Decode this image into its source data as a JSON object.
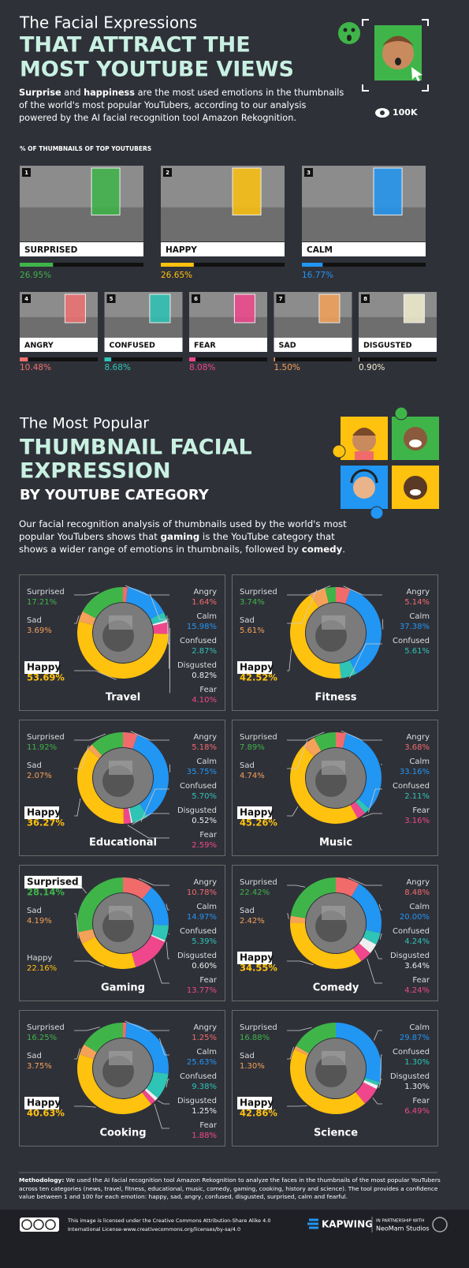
{
  "header": {
    "kicker": "The Facial Expressions",
    "title_lines": [
      "THAT ATTRACT THE",
      "MOST YOUTUBE VIEWS"
    ],
    "badge": "100K",
    "intro": [
      {
        "text": "Surprise",
        "bold": true
      },
      {
        "text": " and ",
        "bold": false
      },
      {
        "text": "happiness",
        "bold": true
      },
      {
        "text": " are the most used emotions in the thumbnails of the world's most popular YouTubers, according to our analysis powered by the AI facial recognition tool Amazon Rekognition.",
        "bold": false
      }
    ]
  },
  "section2": {
    "kicker": "The Most Popular",
    "title_lines": [
      "THUMBNAIL FACIAL",
      "EXPRESSION"
    ],
    "subtitle": "BY YOUTUBE CATEGORY",
    "intro": [
      {
        "text": "Our facial recognition analysis of thumbnails used by the world's most popular YouTubers shows that ",
        "bold": false
      },
      {
        "text": "gaming",
        "bold": true
      },
      {
        "text": " is the YouTube category that shows a wider range of emotions in thumbnails, followed by ",
        "bold": false
      },
      {
        "text": "comedy",
        "bold": true
      },
      {
        "text": ".",
        "bold": false
      }
    ]
  },
  "chart_data": [
    {
      "type": "bar",
      "orientation": "horizontal",
      "title": "% OF THUMBNAILS OF TOP YOUTUBERS",
      "ranks": [
        "1",
        "2",
        "3",
        "4",
        "5",
        "6",
        "7",
        "8"
      ],
      "categories": [
        "SURPRISED",
        "HAPPY",
        "CALM",
        "ANGRY",
        "CONFUSED",
        "FEAR",
        "SAD",
        "DISGUSTED"
      ],
      "values": [
        26.95,
        26.65,
        16.77,
        10.48,
        8.68,
        8.08,
        1.5,
        0.9
      ],
      "value_labels": [
        "26.95%",
        "26.65%",
        "16.77%",
        "10.48%",
        "8.68%",
        "8.08%",
        "1.50%",
        "0.90%"
      ],
      "colors": [
        "#3fb549",
        "#ffc20e",
        "#2196f3",
        "#f07070",
        "#2ec4b6",
        "#f0478c",
        "#f4a259",
        "#f3eed0"
      ],
      "xlim": [
        0,
        100
      ]
    },
    {
      "type": "pie",
      "title": "Travel",
      "categories": [
        "Angry",
        "Calm",
        "Confused",
        "Disgusted",
        "Fear",
        "Happy",
        "Sad",
        "Surprised"
      ],
      "values": [
        1.64,
        15.98,
        2.87,
        0.82,
        4.1,
        53.69,
        3.69,
        17.21
      ],
      "value_labels": [
        "1.64%",
        "15.98%",
        "2.87%",
        "0.82%",
        "4.10%",
        "53.69%",
        "3.69%",
        "17.21%"
      ],
      "colors": [
        "#f26b6b",
        "#2196f3",
        "#2ec4b6",
        "#eeeeee",
        "#f0478c",
        "#ffc20e",
        "#f4a259",
        "#3fb549"
      ]
    },
    {
      "type": "pie",
      "title": "Fitness",
      "categories": [
        "Angry",
        "Calm",
        "Confused",
        "Happy",
        "Sad",
        "Surprised"
      ],
      "values": [
        5.14,
        37.38,
        5.61,
        42.52,
        5.61,
        3.74
      ],
      "value_labels": [
        "5.14%",
        "37.38%",
        "5.61%",
        "42.52%",
        "5.61%",
        "3.74%"
      ],
      "colors": [
        "#f26b6b",
        "#2196f3",
        "#2ec4b6",
        "#ffc20e",
        "#f4a259",
        "#3fb549"
      ]
    },
    {
      "type": "pie",
      "title": "Educational",
      "categories": [
        "Angry",
        "Calm",
        "Confused",
        "Disgusted",
        "Fear",
        "Happy",
        "Sad",
        "Surprised"
      ],
      "values": [
        5.18,
        35.75,
        5.7,
        0.52,
        2.59,
        36.27,
        2.07,
        11.92
      ],
      "value_labels": [
        "5.18%",
        "35.75%",
        "5.70%",
        "0.52%",
        "2.59%",
        "36.27%",
        "2.07%",
        "11.92%"
      ],
      "colors": [
        "#f26b6b",
        "#2196f3",
        "#2ec4b6",
        "#eeeeee",
        "#f0478c",
        "#ffc20e",
        "#f4a259",
        "#3fb549"
      ]
    },
    {
      "type": "pie",
      "title": "Music",
      "categories": [
        "Angry",
        "Calm",
        "Confused",
        "Fear",
        "Happy",
        "Sad",
        "Surprised"
      ],
      "values": [
        3.68,
        33.16,
        2.11,
        3.16,
        45.26,
        4.74,
        7.89
      ],
      "value_labels": [
        "3.68%",
        "33.16%",
        "2.11%",
        "3.16%",
        "45.26%",
        "4.74%",
        "7.89%"
      ],
      "colors": [
        "#f26b6b",
        "#2196f3",
        "#2ec4b6",
        "#f0478c",
        "#ffc20e",
        "#f4a259",
        "#3fb549"
      ]
    },
    {
      "type": "pie",
      "title": "Gaming",
      "categories": [
        "Angry",
        "Calm",
        "Confused",
        "Disgusted",
        "Fear",
        "Happy",
        "Sad",
        "Surprised"
      ],
      "values": [
        10.78,
        14.97,
        5.39,
        0.6,
        13.77,
        22.16,
        4.19,
        28.14
      ],
      "value_labels": [
        "10.78%",
        "14.97%",
        "5.39%",
        "0.60%",
        "13.77%",
        "22.16%",
        "4.19%",
        "28.14%"
      ],
      "colors": [
        "#f26b6b",
        "#2196f3",
        "#2ec4b6",
        "#eeeeee",
        "#f0478c",
        "#ffc20e",
        "#f4a259",
        "#3fb549"
      ]
    },
    {
      "type": "pie",
      "title": "Comedy",
      "categories": [
        "Angry",
        "Calm",
        "Confused",
        "Disgusted",
        "Fear",
        "Happy",
        "Sad",
        "Surprised"
      ],
      "values": [
        8.48,
        20.0,
        4.24,
        3.64,
        4.24,
        34.55,
        2.42,
        22.42
      ],
      "value_labels": [
        "8.48%",
        "20.00%",
        "4.24%",
        "3.64%",
        "4.24%",
        "34.55%",
        "2.42%",
        "22.42%"
      ],
      "colors": [
        "#f26b6b",
        "#2196f3",
        "#2ec4b6",
        "#eeeeee",
        "#f0478c",
        "#ffc20e",
        "#f4a259",
        "#3fb549"
      ]
    },
    {
      "type": "pie",
      "title": "Cooking",
      "categories": [
        "Angry",
        "Calm",
        "Confused",
        "Disgusted",
        "Fear",
        "Happy",
        "Sad",
        "Surprised"
      ],
      "values": [
        1.25,
        25.63,
        9.38,
        1.25,
        1.88,
        40.63,
        3.75,
        16.25
      ],
      "value_labels": [
        "1.25%",
        "25.63%",
        "9.38%",
        "1.25%",
        "1.88%",
        "40.63%",
        "3.75%",
        "16.25%"
      ],
      "colors": [
        "#f26b6b",
        "#2196f3",
        "#2ec4b6",
        "#eeeeee",
        "#f0478c",
        "#ffc20e",
        "#f4a259",
        "#3fb549"
      ]
    },
    {
      "type": "pie",
      "title": "Science",
      "categories": [
        "Calm",
        "Confused",
        "Disgusted",
        "Fear",
        "Happy",
        "Sad",
        "Surprised"
      ],
      "values": [
        29.87,
        1.3,
        1.3,
        6.49,
        42.86,
        1.3,
        16.88
      ],
      "value_labels": [
        "29.87%",
        "1.30%",
        "1.30%",
        "6.49%",
        "42.86%",
        "1.30%",
        "16.88%"
      ],
      "colors": [
        "#2196f3",
        "#2ec4b6",
        "#eeeeee",
        "#f0478c",
        "#ffc20e",
        "#f4a259",
        "#3fb549"
      ]
    }
  ],
  "footer": {
    "methodology": [
      {
        "text": "Methodology:",
        "bold": true
      },
      {
        "text": " We used the AI facial recognition tool Amazon Rekognition to analyze the faces in the thumbnails of the most popular YouTubers across ten categories (news, travel, fitness, educational, music, comedy, gaming, cooking, history and science). The tool provides a confidence value between 1 and 100 for each emotion: happy, sad, angry, confused, disgusted, surprised, calm and fearful.",
        "bold": false
      }
    ],
    "license": [
      "This image is licensed under the Creative Commons Attribution-Share Alike 4.0",
      "International License-www.creativecommons.org/licenses/by-sa/4.0"
    ],
    "brand": "KAPWING",
    "partner_lines": [
      "IN PARTNERSHIP WITH",
      "NeoMam Studios"
    ]
  }
}
